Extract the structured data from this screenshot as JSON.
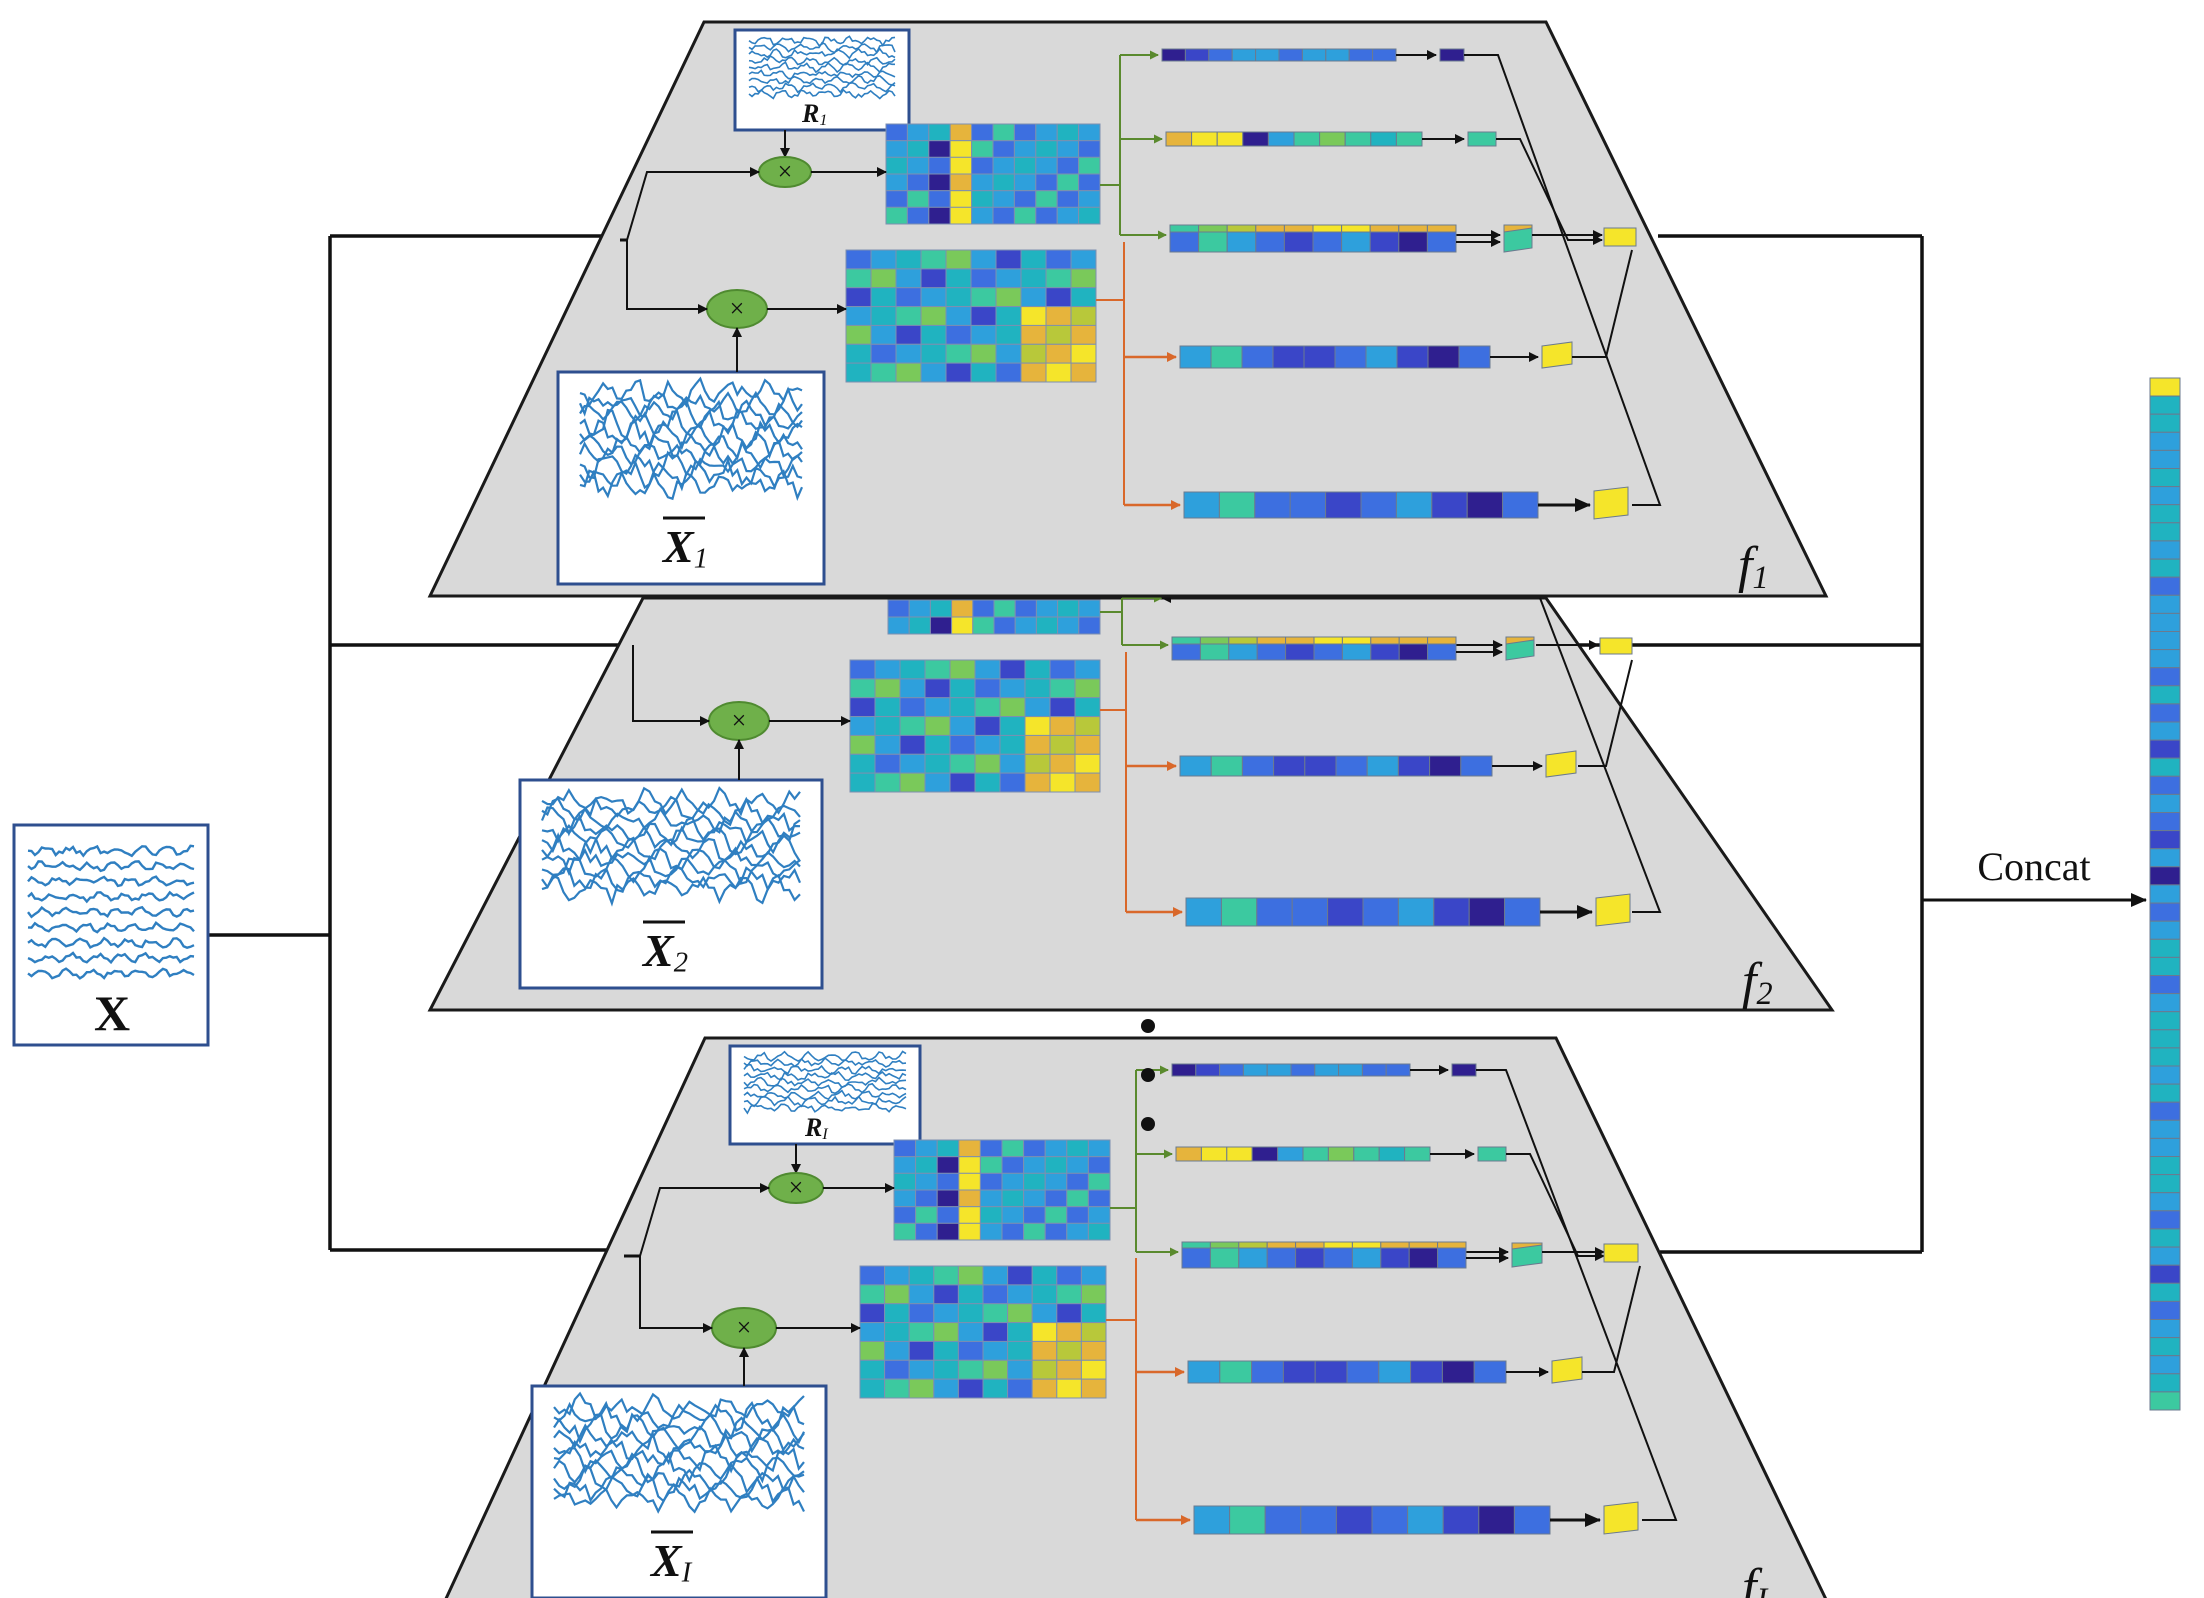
{
  "input": {
    "label": "X"
  },
  "layers": [
    {
      "id": "f1",
      "label_main": "f",
      "label_sub": "1",
      "ref_label": "R",
      "ref_sub": "1",
      "xbar_label": "X",
      "xbar_sub": "1"
    },
    {
      "id": "f2",
      "label_main": "f",
      "label_sub": "2",
      "ref_label": "",
      "ref_sub": "",
      "xbar_label": "X",
      "xbar_sub": "2"
    },
    {
      "id": "fI",
      "label_main": "f",
      "label_sub": "I",
      "ref_label": "R",
      "ref_sub": "I",
      "xbar_label": "X",
      "xbar_sub": "I"
    }
  ],
  "multiply_symbol": "×",
  "concat_label": "Concat",
  "colors": {
    "plane_fill": "#d9d9d9",
    "plane_stroke": "#1a1a1a",
    "signal": "#2f7fc1",
    "box_stroke": "#2e4f8f",
    "node_fill": "#6fb04a",
    "green_arrow": "#5a8a2e",
    "orange_arrow": "#d9682a",
    "palette": [
      "#2f1f8f",
      "#3a46c8",
      "#3d6fe0",
      "#2ea0dc",
      "#20b3c0",
      "#3cc9a0",
      "#7ac95a",
      "#b8c83a",
      "#e6b43c",
      "#f5e52a"
    ]
  }
}
